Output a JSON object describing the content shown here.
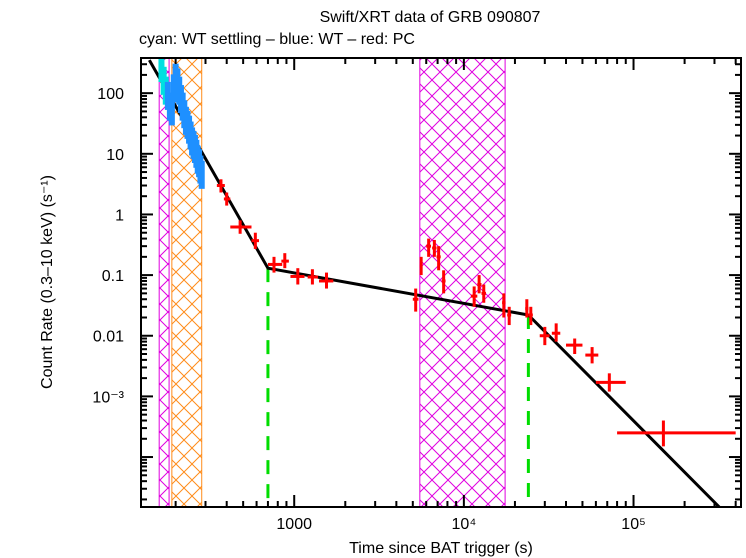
{
  "chart_data": {
    "type": "scatter",
    "title": "Swift/XRT data of GRB 090807",
    "subtitle": "cyan: WT settling – blue: WT – red: PC",
    "xlabel": "Time since BAT trigger (s)",
    "ylabel": "Count Rate (0.3–10 keV) (s⁻¹)",
    "xscale": "log",
    "yscale": "log",
    "xlim": [
      125,
      430000
    ],
    "ylim": [
      1.5e-05,
      380
    ],
    "x_ticks": [
      {
        "value": 1000,
        "label": "1000"
      },
      {
        "value": 10000,
        "label": "10⁴"
      },
      {
        "value": 100000,
        "label": "10⁵"
      }
    ],
    "y_ticks": [
      {
        "value": 100,
        "label": "100"
      },
      {
        "value": 10,
        "label": "10"
      },
      {
        "value": 1,
        "label": "1"
      },
      {
        "value": 0.1,
        "label": "0.1"
      },
      {
        "value": 0.01,
        "label": "0.01"
      },
      {
        "value": 0.001,
        "label": "10⁻³"
      }
    ],
    "colors": {
      "wt_settling": "#00e0e0",
      "wt": "#1e90ff",
      "pc": "#ff0000",
      "model": "#000000",
      "breaks": "#00dd00",
      "flare_band": "#e000e0",
      "orange_band": "#ff8c1a"
    },
    "shaded_regions": [
      {
        "name": "excluded-interval-1",
        "color": "magenta",
        "x_start": 160,
        "x_end": 183
      },
      {
        "name": "excluded-interval-2",
        "color": "orange",
        "x_start": 190,
        "x_end": 285
      },
      {
        "name": "excluded-interval-3",
        "color": "magenta",
        "x_start": 5500,
        "x_end": 17500
      }
    ],
    "break_times": [
      700,
      24000
    ],
    "model_line": {
      "name": "broken power-law fit",
      "points": [
        [
          140,
          350
        ],
        [
          700,
          0.13
        ],
        [
          24000,
          0.022
        ],
        [
          320000,
          1.5e-05
        ]
      ]
    },
    "series": [
      {
        "name": "WT settling",
        "color": "cyan",
        "points": [
          [
            165,
            260
          ],
          [
            170,
            160
          ],
          [
            175,
            110
          ]
        ]
      },
      {
        "name": "WT",
        "color": "blue",
        "points": [
          [
            180,
            90
          ],
          [
            185,
            60
          ],
          [
            190,
            50
          ],
          [
            195,
            120
          ],
          [
            200,
            180
          ],
          [
            205,
            150
          ],
          [
            210,
            110
          ],
          [
            215,
            80
          ],
          [
            220,
            60
          ],
          [
            225,
            45
          ],
          [
            230,
            35
          ],
          [
            235,
            30
          ],
          [
            240,
            25
          ],
          [
            245,
            20
          ],
          [
            250,
            16
          ],
          [
            255,
            14
          ],
          [
            260,
            12
          ],
          [
            265,
            10
          ],
          [
            270,
            8
          ],
          [
            275,
            7
          ],
          [
            280,
            5.5
          ],
          [
            285,
            4.5
          ]
        ]
      },
      {
        "name": "PC",
        "color": "red",
        "points": [
          {
            "x": 370,
            "y": 3.0,
            "xerr": [
              350,
              390
            ],
            "yerr": [
              2.3,
              3.8
            ]
          },
          {
            "x": 400,
            "y": 1.8,
            "xerr": [
              385,
              420
            ],
            "yerr": [
              1.4,
              2.3
            ]
          },
          {
            "x": 480,
            "y": 0.62,
            "xerr": [
              420,
              560
            ],
            "yerr": [
              0.48,
              0.8
            ]
          },
          {
            "x": 590,
            "y": 0.37,
            "xerr": [
              560,
              620
            ],
            "yerr": [
              0.27,
              0.5
            ]
          },
          {
            "x": 760,
            "y": 0.15,
            "xerr": [
              700,
              850
            ],
            "yerr": [
              0.11,
              0.2
            ]
          },
          {
            "x": 880,
            "y": 0.17,
            "xerr": [
              840,
              930
            ],
            "yerr": [
              0.13,
              0.23
            ]
          },
          {
            "x": 1050,
            "y": 0.095,
            "xerr": [
              950,
              1150
            ],
            "yerr": [
              0.07,
              0.13
            ]
          },
          {
            "x": 1280,
            "y": 0.093,
            "xerr": [
              1200,
              1380
            ],
            "yerr": [
              0.07,
              0.125
            ]
          },
          {
            "x": 1550,
            "y": 0.08,
            "xerr": [
              1400,
              1700
            ],
            "yerr": [
              0.06,
              0.11
            ]
          },
          {
            "x": 5200,
            "y": 0.04,
            "xerr": [
              5000,
              5400
            ],
            "yerr": [
              0.025,
              0.06
            ]
          },
          {
            "x": 5600,
            "y": 0.14,
            "xerr": [
              5500,
              5700
            ],
            "yerr": [
              0.1,
              0.2
            ]
          },
          {
            "x": 6200,
            "y": 0.3,
            "xerr": [
              6000,
              6400
            ],
            "yerr": [
              0.2,
              0.4
            ]
          },
          {
            "x": 6700,
            "y": 0.28,
            "xerr": [
              6500,
              6900
            ],
            "yerr": [
              0.2,
              0.38
            ]
          },
          {
            "x": 7100,
            "y": 0.2,
            "xerr": [
              6900,
              7300
            ],
            "yerr": [
              0.12,
              0.3
            ]
          },
          {
            "x": 7600,
            "y": 0.08,
            "xerr": [
              7400,
              7800
            ],
            "yerr": [
              0.05,
              0.12
            ]
          },
          {
            "x": 11500,
            "y": 0.045,
            "xerr": [
              11000,
              12000
            ],
            "yerr": [
              0.03,
              0.065
            ]
          },
          {
            "x": 12300,
            "y": 0.07,
            "xerr": [
              12000,
              12700
            ],
            "yerr": [
              0.05,
              0.1
            ]
          },
          {
            "x": 13100,
            "y": 0.05,
            "xerr": [
              12700,
              13500
            ],
            "yerr": [
              0.035,
              0.07
            ]
          },
          {
            "x": 17200,
            "y": 0.035,
            "xerr": [
              16800,
              17600
            ],
            "yerr": [
              0.02,
              0.05
            ]
          },
          {
            "x": 18500,
            "y": 0.022,
            "xerr": [
              18000,
              19000
            ],
            "yerr": [
              0.015,
              0.03
            ]
          },
          {
            "x": 23500,
            "y": 0.028,
            "xerr": [
              23000,
              24000
            ],
            "yerr": [
              0.02,
              0.04
            ]
          },
          {
            "x": 24800,
            "y": 0.022,
            "xerr": [
              24000,
              25500
            ],
            "yerr": [
              0.015,
              0.03
            ]
          },
          {
            "x": 30000,
            "y": 0.01,
            "xerr": [
              28000,
              32000
            ],
            "yerr": [
              0.007,
              0.014
            ]
          },
          {
            "x": 35000,
            "y": 0.011,
            "xerr": [
              33000,
              37000
            ],
            "yerr": [
              0.008,
              0.016
            ]
          },
          {
            "x": 45000,
            "y": 0.007,
            "xerr": [
              40000,
              50000
            ],
            "yerr": [
              0.005,
              0.009
            ]
          },
          {
            "x": 57000,
            "y": 0.0048,
            "xerr": [
              52000,
              62000
            ],
            "yerr": [
              0.0035,
              0.0065
            ]
          },
          {
            "x": 72000,
            "y": 0.0017,
            "xerr": [
              60000,
              90000
            ],
            "yerr": [
              0.0012,
              0.0024
            ]
          },
          {
            "x": 150000,
            "y": 0.00025,
            "xerr": [
              80000,
              400000
            ],
            "yerr": [
              0.00015,
              0.0004
            ]
          }
        ]
      }
    ]
  }
}
